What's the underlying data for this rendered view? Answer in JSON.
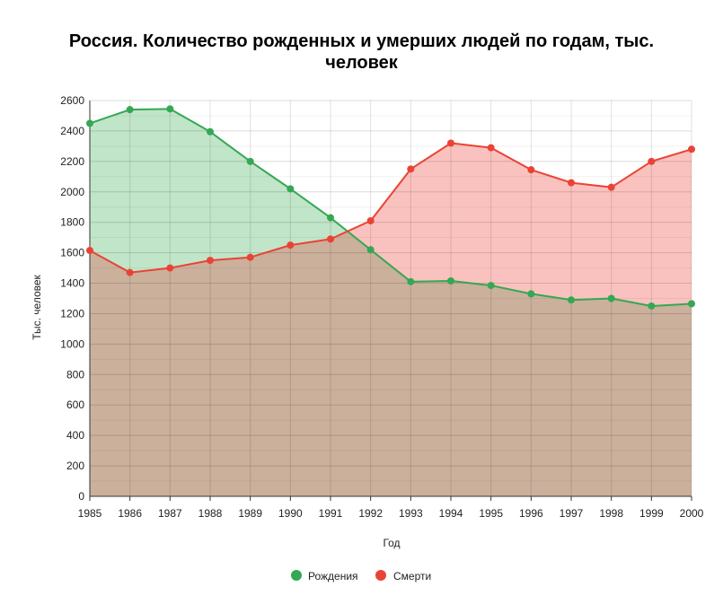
{
  "chart_data": {
    "type": "area",
    "title": "Россия. Количество рожденных и умерших людей по годам, тыс. человек",
    "xlabel": "Год",
    "ylabel": "Тыс. человек",
    "x": [
      1985,
      1986,
      1987,
      1988,
      1989,
      1990,
      1991,
      1992,
      1993,
      1994,
      1995,
      1996,
      1997,
      1998,
      1999,
      2000
    ],
    "x_tick_labels": [
      "1985",
      "1986",
      "1987",
      "1988",
      "1989",
      "1990",
      "1991",
      "1992",
      "1993",
      "1994",
      "1995",
      "1996",
      "1997",
      "1998",
      "1999",
      "2000"
    ],
    "ylim": [
      0,
      2600
    ],
    "y_ticks": [
      0,
      200,
      400,
      600,
      800,
      1000,
      1200,
      1400,
      1600,
      1800,
      2000,
      2200,
      2400,
      2600
    ],
    "y_tick_labels": [
      "0",
      "200",
      "400",
      "600",
      "800",
      "1000",
      "1200",
      "1400",
      "1600",
      "1800",
      "2000",
      "2200",
      "2400",
      "2600"
    ],
    "grid": true,
    "legend_position": "bottom",
    "series": [
      {
        "name": "Рождения",
        "color": "#34a853",
        "fill": "#c1e5c8",
        "values": [
          2450,
          2540,
          2545,
          2395,
          2200,
          2020,
          1830,
          1620,
          1410,
          1415,
          1385,
          1330,
          1290,
          1300,
          1250,
          1265
        ]
      },
      {
        "name": "Смерти",
        "color": "#ea4335",
        "fill": "#f9c2bf",
        "values": [
          1615,
          1470,
          1500,
          1550,
          1570,
          1650,
          1690,
          1810,
          2150,
          2320,
          2290,
          2145,
          2060,
          2030,
          2200,
          2280
        ]
      }
    ],
    "overlap_fill": "#cbb09c"
  }
}
